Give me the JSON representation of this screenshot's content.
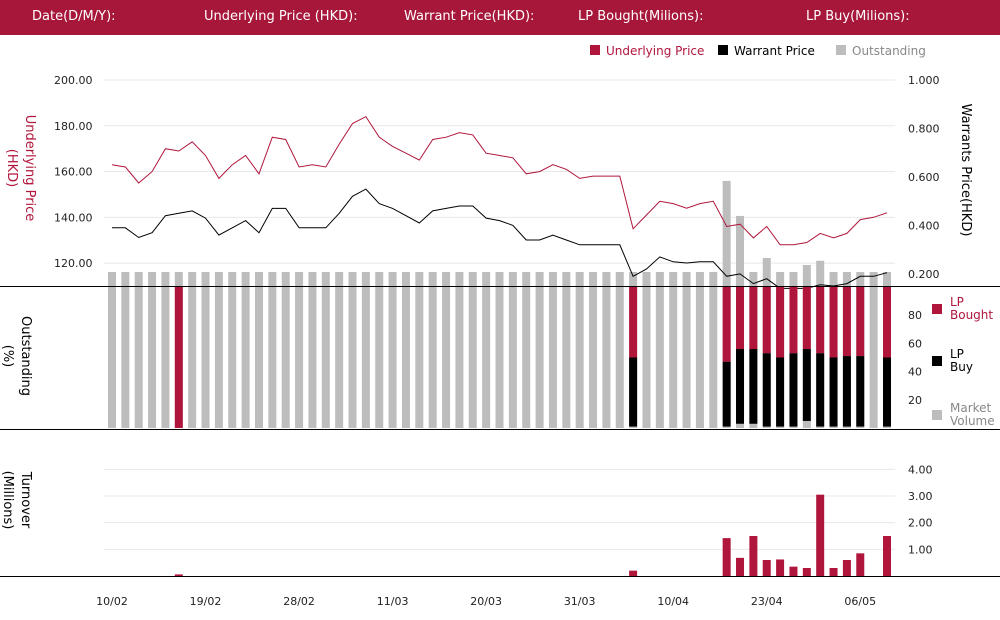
{
  "header": {
    "date_label": "Date(D/M/Y):",
    "underlying_label": "Underlying Price (HKD):",
    "warrant_label": "Warrant  Price(HKD):",
    "lp_bought_label": "LP Bought(Milions):",
    "lp_buy_label": "LP Buy(Milions):"
  },
  "colors": {
    "header_bg": "#a6173a",
    "underlying": "#b0163b",
    "warrant": "#000000",
    "outstanding": "#bdbdbd",
    "lp_bought": "#b0163b",
    "lp_buy": "#000000",
    "market_volume": "#bdbdbd"
  },
  "chart_data": [
    {
      "type": "line",
      "legend": [
        "Underlying Price",
        "Warrant  Price",
        "Outstanding"
      ],
      "legend_position": "top-right",
      "ylabel_left": "Underlying Price (HKD)",
      "ylabel_right": "Warrants  Price(HKD)",
      "y_left_ticks": [
        "120.00",
        "140.00",
        "160.00",
        "180.00",
        "200.00"
      ],
      "y_left_range": [
        110,
        200
      ],
      "y_right_ticks": [
        "0.200",
        "0.400",
        "0.600",
        "0.800",
        "1.000"
      ],
      "y_right_range": [
        0.15,
        1.0
      ],
      "x_tick_labels": [
        "10/02",
        "19/02",
        "28/02",
        "11/03",
        "20/03",
        "31/03",
        "10/04",
        "23/04",
        "06/05"
      ],
      "x_tick_index": [
        0,
        7,
        14,
        21,
        28,
        35,
        42,
        49,
        56
      ],
      "underlying": [
        163,
        162,
        155,
        160,
        170,
        169,
        173,
        167,
        157,
        163,
        167,
        159,
        175,
        174,
        162,
        163,
        162,
        172,
        181,
        184,
        175,
        171,
        168,
        165,
        174,
        175,
        177,
        176,
        168,
        167,
        166,
        159,
        160,
        163,
        161,
        157,
        158,
        158,
        158,
        135,
        141,
        147,
        146,
        144,
        146,
        147,
        136,
        137,
        131,
        136,
        128,
        128,
        129,
        133,
        131,
        133,
        139,
        140,
        142
      ],
      "warrant": [
        0.39,
        0.39,
        0.35,
        0.37,
        0.44,
        0.45,
        0.46,
        0.43,
        0.36,
        0.39,
        0.42,
        0.37,
        0.47,
        0.47,
        0.39,
        0.39,
        0.39,
        0.45,
        0.52,
        0.55,
        0.49,
        0.47,
        0.44,
        0.41,
        0.46,
        0.47,
        0.48,
        0.48,
        0.43,
        0.42,
        0.4,
        0.34,
        0.34,
        0.36,
        0.34,
        0.32,
        0.32,
        0.32,
        0.32,
        0.19,
        0.22,
        0.27,
        0.25,
        0.245,
        0.25,
        0.25,
        0.19,
        0.2,
        0.16,
        0.18,
        0.14,
        0.14,
        0.14,
        0.155,
        0.15,
        0.16,
        0.19,
        0.19,
        0.205
      ],
      "outstanding_pct": [
        10,
        10,
        10,
        10,
        10,
        10,
        10,
        10,
        10,
        10,
        10,
        10,
        10,
        10,
        10,
        10,
        10,
        10,
        10,
        10,
        10,
        10,
        10,
        10,
        10,
        10,
        10,
        10,
        10,
        10,
        10,
        10,
        10,
        10,
        10,
        10,
        10,
        10,
        10,
        10,
        10,
        10,
        10,
        10,
        10,
        10,
        10,
        10,
        10,
        10,
        10,
        10,
        10,
        10,
        10,
        10,
        10,
        10,
        10
      ],
      "outstanding_pct_high": {
        "46": 75,
        "47": 50,
        "48": 10,
        "49": 20,
        "52": 15,
        "53": 18
      }
    },
    {
      "type": "bar",
      "stacked": true,
      "ylabel": "Outstanding (%)",
      "y_ticks": [
        "20",
        "40",
        "60",
        "80"
      ],
      "ylim": [
        0,
        100
      ],
      "series": [
        {
          "name": "LP Bought"
        },
        {
          "name": "LP Buy"
        },
        {
          "name": "Market Volume"
        }
      ],
      "bars": [
        {
          "i": 5,
          "bought": 100,
          "buy": 0,
          "market": 0
        },
        {
          "i": 39,
          "bought": 50,
          "buy": 49,
          "market": 0
        },
        {
          "i": 46,
          "bought": 53,
          "buy": 46,
          "market": 0
        },
        {
          "i": 47,
          "bought": 44,
          "buy": 53,
          "market": 3
        },
        {
          "i": 48,
          "bought": 44,
          "buy": 53,
          "market": 3
        },
        {
          "i": 49,
          "bought": 47,
          "buy": 52,
          "market": 0
        },
        {
          "i": 50,
          "bought": 50,
          "buy": 49,
          "market": 0
        },
        {
          "i": 51,
          "bought": 47,
          "buy": 52,
          "market": 0
        },
        {
          "i": 52,
          "bought": 44,
          "buy": 51,
          "market": 4
        },
        {
          "i": 53,
          "bought": 47,
          "buy": 52,
          "market": 0
        },
        {
          "i": 54,
          "bought": 50,
          "buy": 49,
          "market": 0
        },
        {
          "i": 55,
          "bought": 49,
          "buy": 50,
          "market": 0
        },
        {
          "i": 56,
          "bought": 49,
          "buy": 50,
          "market": 0
        },
        {
          "i": 58,
          "bought": 50,
          "buy": 49,
          "market": 0
        }
      ]
    },
    {
      "type": "bar",
      "ylabel": "Turnover (Millions)",
      "y_ticks": [
        "1.00",
        "2.00",
        "3.00",
        "4.00"
      ],
      "ylim": [
        0,
        4.5
      ],
      "turnover": [
        {
          "i": 5,
          "v": 0.06
        },
        {
          "i": 39,
          "v": 0.2
        },
        {
          "i": 46,
          "v": 1.42
        },
        {
          "i": 47,
          "v": 0.68
        },
        {
          "i": 48,
          "v": 1.5
        },
        {
          "i": 49,
          "v": 0.6
        },
        {
          "i": 50,
          "v": 0.62
        },
        {
          "i": 51,
          "v": 0.35
        },
        {
          "i": 52,
          "v": 0.3
        },
        {
          "i": 53,
          "v": 3.05
        },
        {
          "i": 54,
          "v": 0.3
        },
        {
          "i": 55,
          "v": 0.6
        },
        {
          "i": 56,
          "v": 0.85
        },
        {
          "i": 58,
          "v": 1.5
        }
      ]
    }
  ]
}
